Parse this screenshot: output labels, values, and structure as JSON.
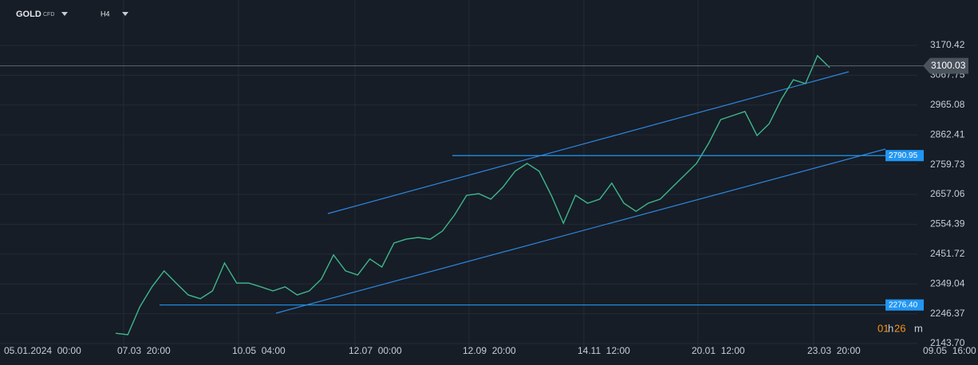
{
  "header": {
    "symbol": "GOLD",
    "badge": "CFD",
    "timeframe": "H4"
  },
  "chart_data": {
    "type": "line",
    "x_labels": [
      "05.01.2024  00:00",
      "07.03  20:00",
      "10.05  04:00",
      "12.07  00:00",
      "12.09  20:00",
      "14.11  12:00",
      "20.01  12:00",
      "23.03  20:00",
      "09.05  16:00"
    ],
    "series": [
      {
        "color": "#3fb68b",
        "values": [
          2179,
          2174,
          2270,
          2339,
          2394,
          2352,
          2311,
          2298,
          2325,
          2421,
          2352,
          2352,
          2339,
          2325,
          2339,
          2311,
          2325,
          2366,
          2449,
          2394,
          2380,
          2435,
          2407,
          2490,
          2503,
          2509,
          2503,
          2531,
          2586,
          2654,
          2660,
          2641,
          2682,
          2737,
          2764,
          2737,
          2654,
          2558,
          2654,
          2627,
          2641,
          2696,
          2627,
          2599,
          2627,
          2641,
          2682,
          2723,
          2764,
          2833,
          2915,
          2929,
          2943,
          2860,
          2901,
          2984,
          3052,
          3039,
          3135,
          3094
        ]
      }
    ],
    "ylim": [
      2119.1,
      3326.9
    ],
    "yticks": [
      3170.42,
      3067.75,
      2965.08,
      2862.41,
      2759.73,
      2657.06,
      2554.39,
      2451.72,
      2349.04,
      2246.37,
      {
        "value": 2143.7,
        "label": "2143.70"
      }
    ],
    "grid": true,
    "current_price": {
      "value": 3100.03,
      "color": "#4a525c"
    },
    "levels": [
      {
        "value": 2790.95,
        "color": "#2196f3"
      },
      {
        "value": 2276.4,
        "label": "2276.40",
        "color": "#2196f3"
      }
    ],
    "countdown": [
      "01",
      "h",
      "26",
      "m"
    ]
  }
}
